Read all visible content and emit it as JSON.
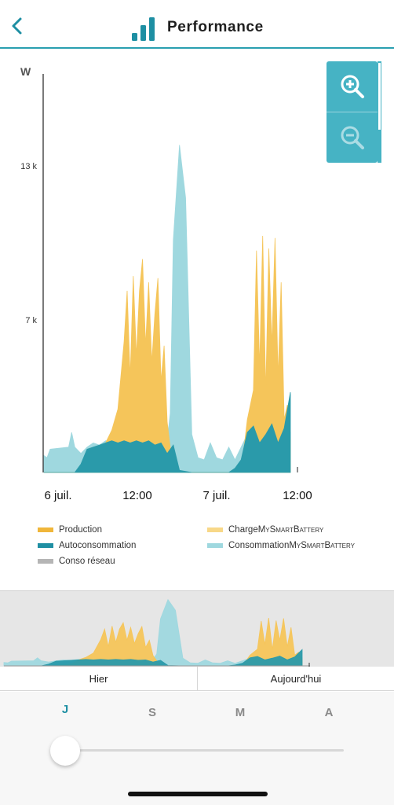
{
  "header": {
    "title": "Performance",
    "back_icon": "chevron-left-icon",
    "title_icon": "bar-chart-icon"
  },
  "colors": {
    "accent": "#1e8fa3",
    "production": "#f5c55a",
    "autoconsommation": "#2a9aaa",
    "conso_reseau": "#b5b5b5",
    "charge_battery": "#f8d888",
    "consommation_battery": "#9fd8df"
  },
  "zoom": {
    "in_icon": "zoom-in-icon",
    "out_icon": "zoom-out-icon"
  },
  "chart_data": {
    "type": "area",
    "ylabel": "W",
    "ylim": [
      0,
      16
    ],
    "yticks": [
      "13 k",
      "7 k"
    ],
    "xticks": [
      "6 juil.",
      "12:00",
      "7 juil.",
      "12:00"
    ],
    "series": [
      {
        "name": "Production",
        "key": "production",
        "x": [
          0,
          7,
          9,
          10,
          11,
          12,
          13,
          13.5,
          14,
          14.5,
          15,
          15.5,
          16,
          16.5,
          17,
          17.5,
          18,
          18.5,
          19,
          19.5,
          20,
          21,
          32,
          33,
          34,
          34.5,
          35,
          35.5,
          36,
          36.5,
          37,
          37.5,
          38,
          38.5,
          39,
          39.5,
          40
        ],
        "values": [
          0,
          0,
          0.4,
          1.4,
          2,
          3,
          6.2,
          8.6,
          4.5,
          9.3,
          5.5,
          8.6,
          10.1,
          6,
          9,
          5.2,
          7.5,
          9.2,
          4.3,
          6,
          2.4,
          0,
          0,
          2.5,
          3.9,
          10.5,
          5,
          11.2,
          3.8,
          10.6,
          6,
          11.1,
          4.5,
          9,
          2.5,
          3.2,
          1.5
        ]
      },
      {
        "name": "Autoconsommation",
        "key": "autoconsommation",
        "x": [
          0,
          5,
          6,
          7,
          8,
          9,
          10,
          11,
          12,
          13,
          14,
          15,
          16,
          17,
          18,
          19,
          20,
          21,
          22,
          24,
          27,
          29,
          30,
          31,
          32,
          33,
          34,
          35,
          36,
          37,
          38,
          39,
          40
        ],
        "values": [
          0,
          0,
          0.4,
          1.1,
          1.2,
          1.3,
          1.4,
          1.5,
          1.4,
          1.5,
          1.4,
          1.5,
          1.4,
          1.5,
          1.3,
          1.4,
          0.9,
          1.3,
          0.1,
          0,
          0,
          0,
          0,
          0.2,
          0.6,
          1.9,
          2.2,
          1.4,
          1.8,
          2.3,
          1.4,
          2.1,
          3.8
        ]
      },
      {
        "name": "Conso réseau",
        "key": "conso_reseau",
        "x": [],
        "values": []
      },
      {
        "name": "Charge MySmartBattery",
        "key": "charge_battery",
        "x": [],
        "values": []
      },
      {
        "name": "Consommation MySmartBattery",
        "key": "consommation_battery",
        "x": [
          0,
          0.5,
          1,
          4,
          4.5,
          5,
          6,
          7,
          8,
          9,
          10,
          12,
          14,
          16,
          18,
          19,
          20,
          20.5,
          21,
          22,
          23,
          24,
          25,
          26,
          27,
          28,
          29,
          30,
          31,
          32,
          33,
          34,
          35,
          36,
          37,
          38,
          39,
          40
        ],
        "values": [
          0.8,
          0.7,
          1.1,
          1.2,
          1.9,
          1.2,
          0.9,
          1.2,
          1.4,
          1.3,
          1.5,
          1.4,
          1.5,
          1.4,
          1.5,
          1.3,
          1.5,
          2.8,
          11,
          15.5,
          13,
          1.8,
          0.7,
          0.6,
          1.4,
          0.7,
          0.6,
          1.2,
          0.6,
          1.2,
          1.8,
          1.7,
          1.5,
          1.4,
          1.5,
          1.7,
          1.7,
          1.9
        ]
      }
    ]
  },
  "legend": [
    {
      "name": "Production",
      "key": "production",
      "main": "Production",
      "sc": ""
    },
    {
      "name": "Charge MySmartBattery",
      "key": "charge_battery",
      "main": "Charge ",
      "sc": "MySmartBattery"
    },
    {
      "name": "Autoconsommation",
      "key": "autoconsommation",
      "main": "Autoconsommation",
      "sc": ""
    },
    {
      "name": "Consommation MySmartBattery",
      "key": "consommation_battery",
      "main": "Consommation ",
      "sc": "MySmartBattery"
    },
    {
      "name": "Conso réseau",
      "key": "conso_reseau",
      "main": "Conso réseau",
      "sc": ""
    }
  ],
  "day_buttons": {
    "yesterday": "Hier",
    "today": "Aujourd'hui"
  },
  "period": {
    "selected": "J",
    "labels": [
      "J",
      "S",
      "M",
      "A"
    ],
    "slider_fraction": 0
  }
}
